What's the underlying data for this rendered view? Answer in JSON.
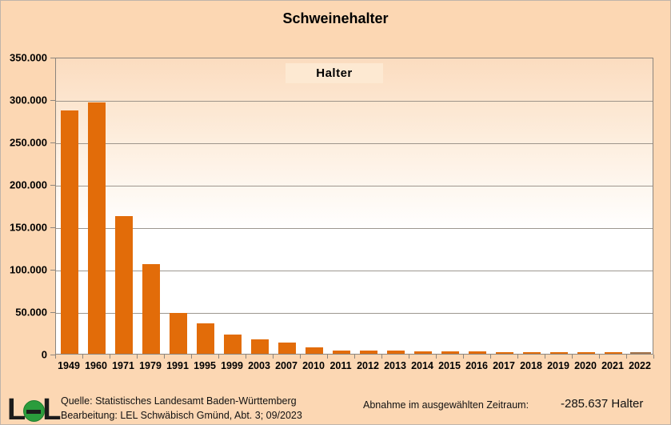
{
  "window": {
    "background": "#fcd7b3",
    "border_color": "#c0b4aa"
  },
  "chart": {
    "title": "Schweinehalter",
    "legend_label": "Halter"
  },
  "chart_data": {
    "type": "bar",
    "title": "Schweinehalter",
    "series_name": "Halter",
    "categories": [
      "1949",
      "1960",
      "1971",
      "1979",
      "1991",
      "1995",
      "1999",
      "2003",
      "2007",
      "2010",
      "2011",
      "2012",
      "2013",
      "2014",
      "2015",
      "2016",
      "2017",
      "2018",
      "2019",
      "2020",
      "2021",
      "2022"
    ],
    "values": [
      287000,
      296000,
      162000,
      106000,
      48000,
      36000,
      23000,
      17000,
      13000,
      8000,
      3500,
      3400,
      3400,
      2600,
      2500,
      2400,
      2300,
      2200,
      2100,
      2000,
      2000,
      1500
    ],
    "ylim": [
      0,
      350000
    ],
    "ytick_step": 50000,
    "ytick_labels": [
      "350.000",
      "300.000",
      "250.000",
      "200.000",
      "150.000",
      "100.000",
      "50.000",
      "0"
    ],
    "grid": true,
    "legend_position": "top-center-inside",
    "bar_color": "#e26c09",
    "grid_color": "#8c857d",
    "highlighted_category": "2022",
    "highlight_fill": "#f4e0ba",
    "highlight_border": "#a5744a"
  },
  "footer": {
    "logo": "LEL",
    "logo_green": "#2a9c3c",
    "source_line1": "Quelle: Statistisches Landesamt Baden-Württemberg",
    "source_line2": "Bearbeitung: LEL Schwäbisch Gmünd, Abt. 3; 09/2023",
    "change_label": "Abnahme im ausgewählten Zeitraum:",
    "change_value": "-285.637 Halter"
  }
}
